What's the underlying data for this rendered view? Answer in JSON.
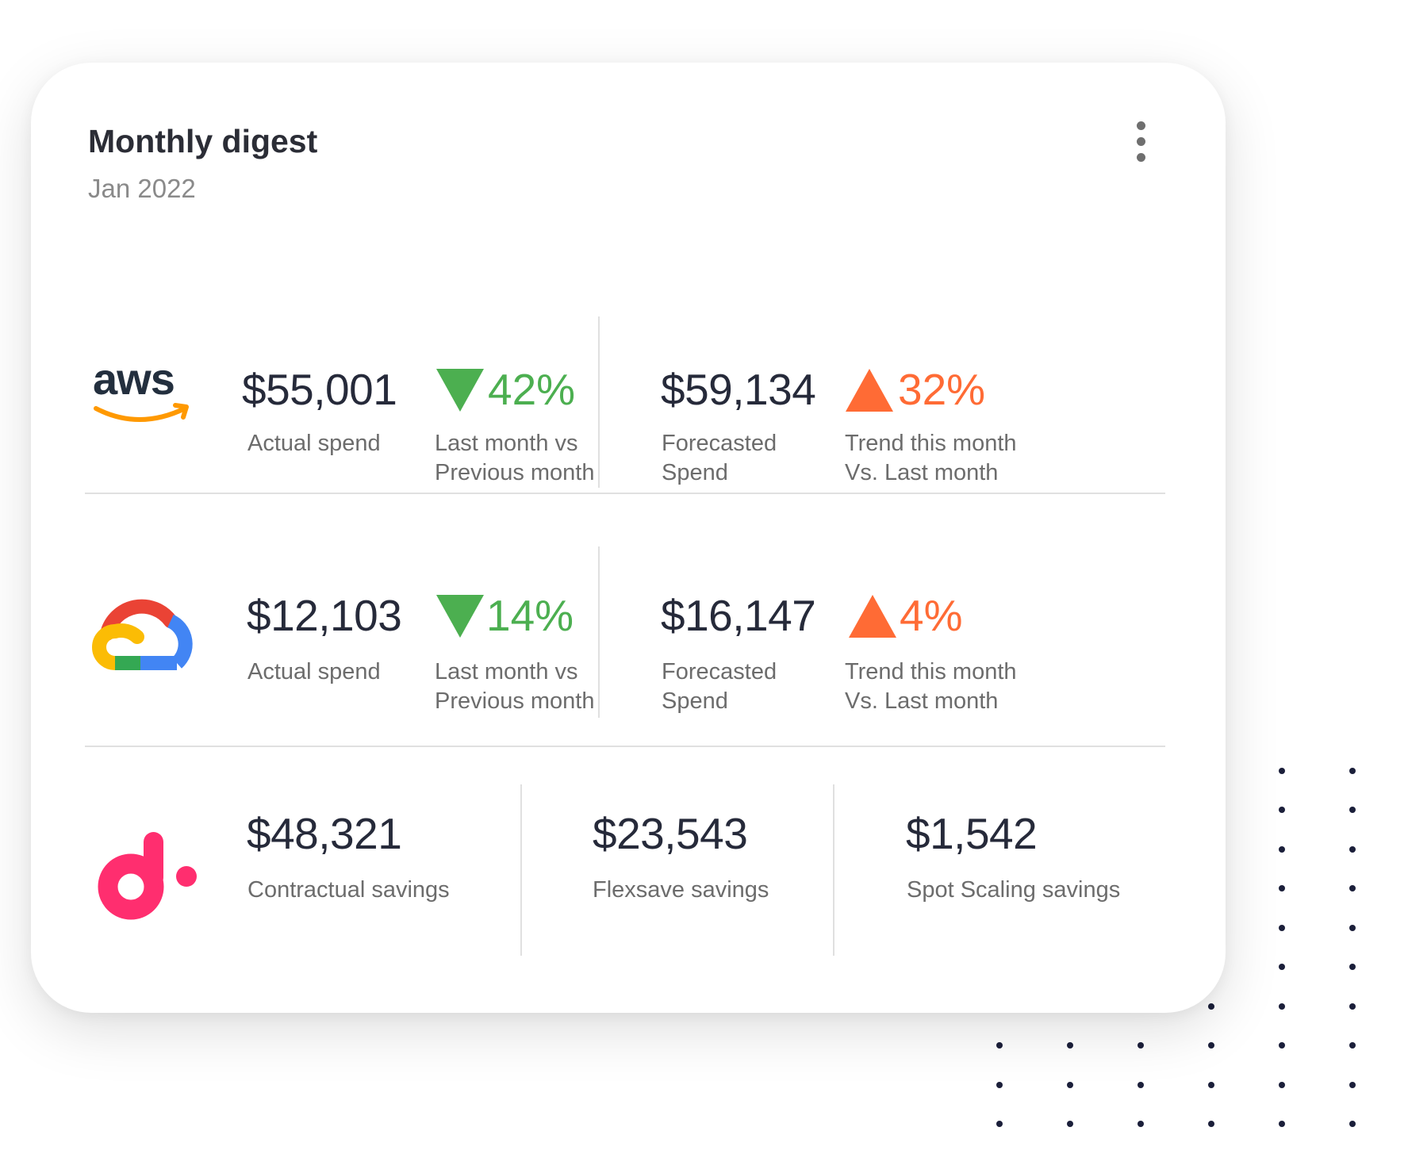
{
  "card": {
    "title": "Monthly digest",
    "date": "Jan 2022"
  },
  "colors": {
    "down": "#4caf50",
    "up": "#ff6b35",
    "dots": "#1b1f3a"
  },
  "providers": [
    {
      "logo": "aws-logo",
      "logo_text": "aws",
      "actual_spend": "$55,001",
      "actual_label": "Actual spend",
      "change_pct": "42%",
      "change_direction": "down",
      "change_label_1": "Last month vs",
      "change_label_2": "Previous month",
      "forecast": "$59,134",
      "forecast_label_1": "Forecasted",
      "forecast_label_2": "Spend",
      "trend_pct": "32%",
      "trend_direction": "up",
      "trend_label_1": "Trend this month",
      "trend_label_2": "Vs. Last month"
    },
    {
      "logo": "google-cloud-logo",
      "actual_spend": "$12,103",
      "actual_label": "Actual spend",
      "change_pct": "14%",
      "change_direction": "down",
      "change_label_1": "Last month vs",
      "change_label_2": "Previous month",
      "forecast": "$16,147",
      "forecast_label_1": "Forecasted",
      "forecast_label_2": "Spend",
      "trend_pct": "4%",
      "trend_direction": "up",
      "trend_label_1": "Trend this month",
      "trend_label_2": "Vs. Last month"
    }
  ],
  "savings": {
    "logo": "doit-logo",
    "items": [
      {
        "value": "$48,321",
        "label": "Contractual savings"
      },
      {
        "value": "$23,543",
        "label": "Flexsave savings"
      },
      {
        "value": "$1,542",
        "label": "Spot Scaling savings"
      }
    ]
  }
}
